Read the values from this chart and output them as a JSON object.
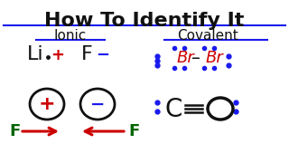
{
  "title": "How To Identify It",
  "bg_color": "#ffffff",
  "blue": "#1a1aee",
  "red": "#cc0000",
  "green": "#006600",
  "black": "#111111",
  "ionic_label": "Ionic",
  "covalent_label": "Covalent"
}
